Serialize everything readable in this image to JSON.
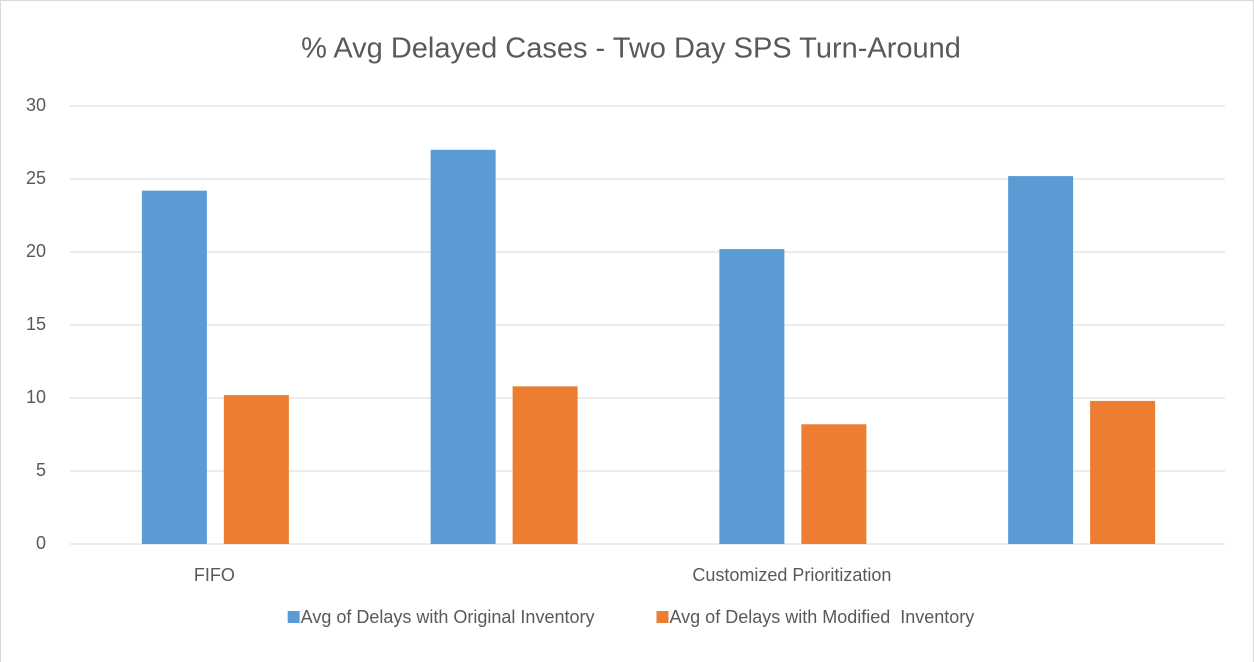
{
  "chart_data": {
    "type": "bar",
    "title": "% Avg Delayed Cases - Two Day SPS Turn-Around",
    "categories": [
      "FIFO",
      null,
      "Customized Prioritization",
      null
    ],
    "series": [
      {
        "name": "Avg of Delays with Original Inventory",
        "color": "#5b9bd5",
        "values": [
          24.2,
          27,
          20.2,
          25.2
        ]
      },
      {
        "name": "Avg of Delays with Modified  Inventory",
        "color": "#ed7d31",
        "values": [
          10.2,
          10.8,
          8.2,
          9.8
        ]
      }
    ],
    "ylim": [
      0,
      30
    ],
    "yticks": [
      0,
      5,
      10,
      15,
      20,
      25,
      30
    ],
    "grid": true,
    "legend": "bottom"
  }
}
